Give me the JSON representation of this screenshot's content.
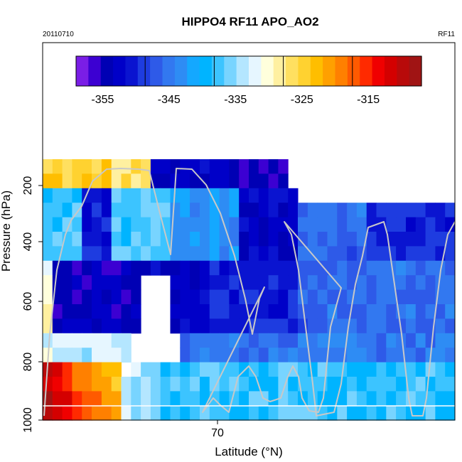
{
  "chart_data": {
    "type": "heatmap",
    "title": "HIPPO4 RF11 APO_AO2",
    "corner_left": "20110710",
    "corner_right": "RF11",
    "xlabel": "Latitude (°N)",
    "ylabel": "Pressure (hPa)",
    "x_ticks": [
      "70"
    ],
    "y_ticks": [
      "200",
      "400",
      "600",
      "800",
      "1000"
    ],
    "colorbar": {
      "range": [
        -359,
        -307
      ],
      "tick_values": [
        -355,
        -345,
        -335,
        -325,
        -315
      ],
      "tick_labels": [
        "-355",
        "-345",
        "-335",
        "-325",
        "-315"
      ],
      "colors": [
        "#7a1ee6",
        "#3c00d2",
        "#0000b4",
        "#0000c8",
        "#0a14d0",
        "#1e3ce0",
        "#2e5ae8",
        "#3278f0",
        "#2e8cf4",
        "#14a8ff",
        "#00b4ff",
        "#3cc4ff",
        "#78d4ff",
        "#b4e6ff",
        "#e6f6ff",
        "#ffffdc",
        "#fff0a0",
        "#ffe060",
        "#ffd230",
        "#ffbe00",
        "#ffa000",
        "#ff8000",
        "#ff5a00",
        "#ff2a00",
        "#f00000",
        "#d40000",
        "#b80a0a",
        "#a01414"
      ]
    }
  }
}
